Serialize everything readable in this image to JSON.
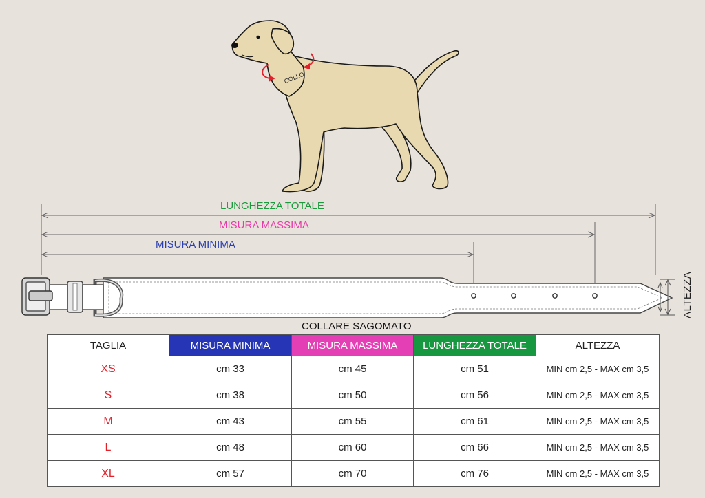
{
  "diagram": {
    "collo_label": "COLLO",
    "lunghezza_totale_label": "LUNGHEZZA TOTALE",
    "misura_massima_label": "MISURA MASSIMA",
    "misura_minima_label": "MISURA MINIMA",
    "altezza_label": "ALTEZZA",
    "collare_label": "COLLARE SAGOMATO",
    "colors": {
      "background": "#e8e2dd",
      "dog_fill": "#e8d9b0",
      "arrow_red": "#e3212b",
      "minima": "#2535b5",
      "massima": "#e43fb4",
      "totale": "#17973f"
    }
  },
  "table": {
    "headers": {
      "taglia": "TAGLIA",
      "minima": "MISURA MINIMA",
      "massima": "MISURA MASSIMA",
      "totale": "LUNGHEZZA TOTALE",
      "altezza": "ALTEZZA"
    },
    "rows": [
      {
        "size": "XS",
        "min": "cm 33",
        "max": "cm 45",
        "tot": "cm 51",
        "alt": "MIN cm 2,5 - MAX  cm 3,5"
      },
      {
        "size": "S",
        "min": "cm 38",
        "max": "cm 50",
        "tot": "cm 56",
        "alt": "MIN cm 2,5 - MAX  cm 3,5"
      },
      {
        "size": "M",
        "min": "cm 43",
        "max": "cm 55",
        "tot": "cm 61",
        "alt": "MIN cm 2,5 - MAX  cm 3,5"
      },
      {
        "size": "L",
        "min": "cm 48",
        "max": "cm 60",
        "tot": "cm 66",
        "alt": "MIN cm 2,5 - MAX  cm 3,5"
      },
      {
        "size": "XL",
        "min": "cm 57",
        "max": "cm 70",
        "tot": "cm 76",
        "alt": "MIN cm 2,5 - MAX  cm 3,5"
      }
    ]
  }
}
